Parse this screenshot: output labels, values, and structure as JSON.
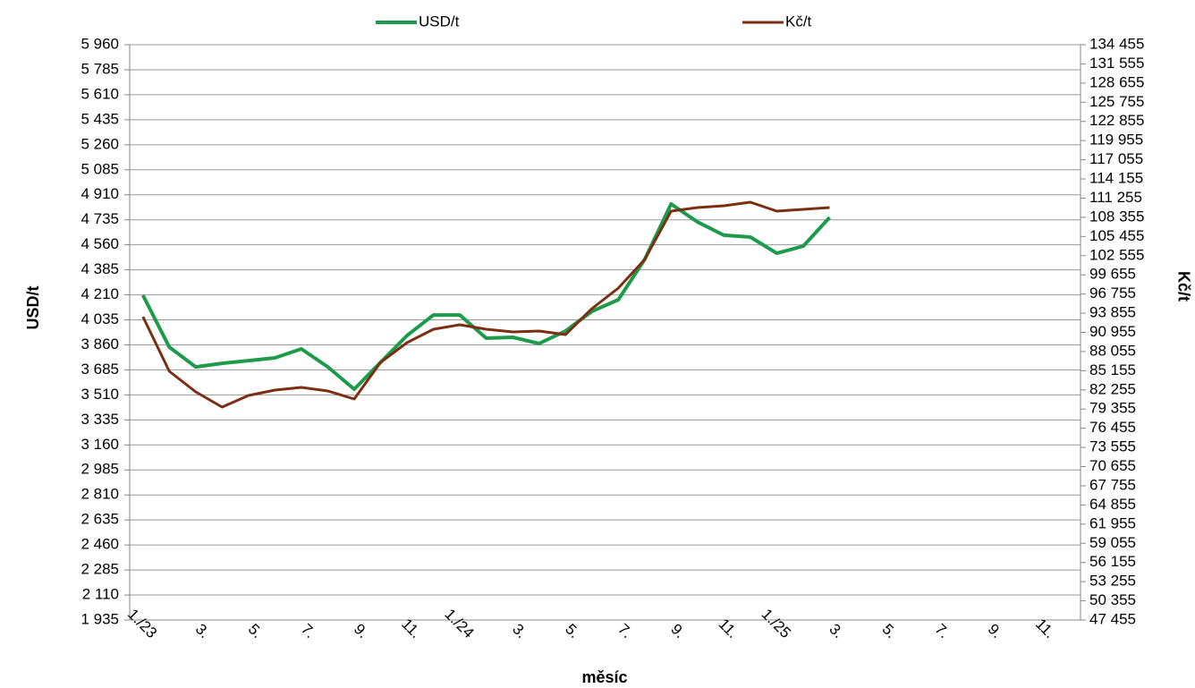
{
  "chart_data": {
    "type": "line",
    "x_label": "měsíc",
    "y_label": "USD/t",
    "y2_label": "Kč/t",
    "categories": [
      "1./23",
      null,
      "3.",
      null,
      "5.",
      null,
      "7.",
      null,
      "9.",
      null,
      "11.",
      null,
      "1./24",
      null,
      "3.",
      null,
      "5.",
      null,
      "7.",
      null,
      "9.",
      null,
      "11.",
      null,
      "1./25",
      null,
      "3.",
      null,
      "5.",
      null,
      "7.",
      null,
      "9.",
      null,
      "11.",
      null
    ],
    "series": [
      {
        "name": "USD/t",
        "color": "#1e9a4b",
        "axis": "y",
        "values": [
          4207,
          3844,
          3706,
          3731,
          3750,
          3769,
          3832,
          3706,
          3550,
          3738,
          3925,
          4069,
          4069,
          3907,
          3913,
          3869,
          3957,
          4094,
          4176,
          4458,
          4846,
          4720,
          4627,
          4614,
          4501,
          4551,
          4752,
          null,
          null,
          null,
          null,
          null,
          null,
          null,
          null,
          null
        ]
      },
      {
        "name": "Kč/t",
        "color": "#7b2e12",
        "axis": "y2",
        "values": [
          93324,
          85070,
          81958,
          79658,
          81417,
          82229,
          82635,
          82094,
          80876,
          86423,
          89400,
          91430,
          92106,
          91430,
          91024,
          91159,
          90618,
          94541,
          97653,
          101983,
          109289,
          109830,
          110101,
          110642,
          109289,
          109560,
          109830,
          null,
          null,
          null,
          null,
          null,
          null,
          null,
          null,
          null
        ]
      }
    ],
    "ylim": [
      1935,
      5960
    ],
    "yticks": [
      {
        "value": 1935,
        "label": "1 935"
      },
      {
        "value": 2110,
        "label": "2 110"
      },
      {
        "value": 2285,
        "label": "2 285"
      },
      {
        "value": 2460,
        "label": "2 460"
      },
      {
        "value": 2635,
        "label": "2 635"
      },
      {
        "value": 2810,
        "label": "2 810"
      },
      {
        "value": 2985,
        "label": "2 985"
      },
      {
        "value": 3160,
        "label": "3 160"
      },
      {
        "value": 3335,
        "label": "3 335"
      },
      {
        "value": 3510,
        "label": "3 510"
      },
      {
        "value": 3685,
        "label": "3 685"
      },
      {
        "value": 3860,
        "label": "3 860"
      },
      {
        "value": 4035,
        "label": "4 035"
      },
      {
        "value": 4210,
        "label": "4 210"
      },
      {
        "value": 4385,
        "label": "4 385"
      },
      {
        "value": 4560,
        "label": "4 560"
      },
      {
        "value": 4735,
        "label": "4 735"
      },
      {
        "value": 4910,
        "label": "4 910"
      },
      {
        "value": 5085,
        "label": "5 085"
      },
      {
        "value": 5260,
        "label": "5 260"
      },
      {
        "value": 5435,
        "label": "5 435"
      },
      {
        "value": 5610,
        "label": "5 610"
      },
      {
        "value": 5785,
        "label": "5 785"
      },
      {
        "value": 5960,
        "label": "5 960"
      }
    ],
    "y2lim": [
      47455,
      134455
    ],
    "y2ticks": [
      {
        "value": 47455,
        "label": "47 455"
      },
      {
        "value": 50355,
        "label": "50 355"
      },
      {
        "value": 53255,
        "label": "53 255"
      },
      {
        "value": 56155,
        "label": "56 155"
      },
      {
        "value": 59055,
        "label": "59 055"
      },
      {
        "value": 61955,
        "label": "61 955"
      },
      {
        "value": 64855,
        "label": "64 855"
      },
      {
        "value": 67755,
        "label": "67 755"
      },
      {
        "value": 70655,
        "label": "70 655"
      },
      {
        "value": 73555,
        "label": "73 555"
      },
      {
        "value": 76455,
        "label": "76 455"
      },
      {
        "value": 79355,
        "label": "79 355"
      },
      {
        "value": 82255,
        "label": "82 255"
      },
      {
        "value": 85155,
        "label": "85 155"
      },
      {
        "value": 88055,
        "label": "88 055"
      },
      {
        "value": 90955,
        "label": "90 955"
      },
      {
        "value": 93855,
        "label": "93 855"
      },
      {
        "value": 96755,
        "label": "96 755"
      },
      {
        "value": 99655,
        "label": "99 655"
      },
      {
        "value": 102555,
        "label": "102 555"
      },
      {
        "value": 105455,
        "label": "105 455"
      },
      {
        "value": 108355,
        "label": "108 355"
      },
      {
        "value": 111255,
        "label": "111 255"
      },
      {
        "value": 114155,
        "label": "114 155"
      },
      {
        "value": 117055,
        "label": "117 055"
      },
      {
        "value": 119955,
        "label": "119 955"
      },
      {
        "value": 122855,
        "label": "122 855"
      },
      {
        "value": 125755,
        "label": "125 755"
      },
      {
        "value": 128655,
        "label": "128 655"
      },
      {
        "value": 131555,
        "label": "131 555"
      },
      {
        "value": 134455,
        "label": "134 455"
      }
    ],
    "grid": true,
    "legend": "top"
  }
}
